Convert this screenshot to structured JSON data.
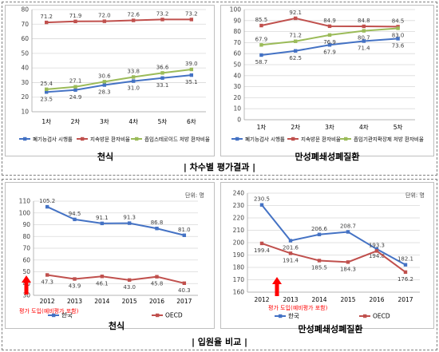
{
  "chart_data": [
    {
      "type": "line",
      "categories": [
        "1차",
        "2차",
        "3차",
        "4차",
        "5차",
        "6차"
      ],
      "ylim": [
        10,
        80
      ],
      "yticks": [
        10,
        20,
        30,
        40,
        50,
        60,
        70,
        80
      ],
      "grid": true,
      "legend_position": "bottom",
      "series": [
        {
          "name": "폐기능검사 시행률",
          "color": "#4472c4",
          "values": [
            23.5,
            24.9,
            28.3,
            31.0,
            33.1,
            35.1
          ]
        },
        {
          "name": "지속방문 환자비율",
          "color": "#c0504d",
          "values": [
            71.2,
            71.9,
            72.0,
            72.6,
            73.2,
            73.2
          ]
        },
        {
          "name": "흡입스테로이드 처방 환자비율",
          "color": "#9bbb59",
          "values": [
            25.4,
            27.1,
            30.6,
            33.8,
            36.6,
            39.0
          ]
        }
      ],
      "caption": "천식"
    },
    {
      "type": "line",
      "categories": [
        "1차",
        "2차",
        "3차",
        "4차",
        "5차"
      ],
      "ylim": [
        0,
        100
      ],
      "yticks": [
        0,
        10,
        20,
        30,
        40,
        50,
        60,
        70,
        80,
        90,
        100
      ],
      "grid": true,
      "legend_position": "bottom",
      "series": [
        {
          "name": "폐기능검사 시행률",
          "color": "#4472c4",
          "values": [
            58.7,
            62.5,
            67.9,
            71.4,
            73.6
          ]
        },
        {
          "name": "지속방문 환자비율",
          "color": "#c0504d",
          "values": [
            85.5,
            92.1,
            84.9,
            84.8,
            84.5
          ]
        },
        {
          "name": "흡입기관지확장제 처방 환자비율",
          "color": "#9bbb59",
          "values": [
            67.9,
            71.2,
            76.9,
            80.7,
            83.0
          ]
        }
      ],
      "caption": "만성폐쇄성폐질환"
    },
    {
      "type": "line",
      "categories": [
        "2012",
        "2013",
        "2014",
        "2015",
        "2016",
        "2017"
      ],
      "ylim": [
        30,
        110
      ],
      "yticks": [
        30,
        40,
        50,
        60,
        70,
        80,
        90,
        100,
        110
      ],
      "grid": true,
      "legend_position": "bottom",
      "unit_label": "단위: 명",
      "intro_label": "평가 도입(예비평가 포함)",
      "series": [
        {
          "name": "한국",
          "color": "#4472c4",
          "values": [
            105.2,
            94.5,
            91.1,
            91.3,
            86.8,
            81.0
          ]
        },
        {
          "name": "OECD",
          "color": "#c0504d",
          "values": [
            47.3,
            43.9,
            46.1,
            43.0,
            45.8,
            40.3
          ]
        }
      ],
      "caption": "천식"
    },
    {
      "type": "line",
      "categories": [
        "2012",
        "2013",
        "2014",
        "2015",
        "2016",
        "2017"
      ],
      "ylim": [
        160,
        240
      ],
      "yticks": [
        160,
        170,
        180,
        190,
        200,
        210,
        220,
        230,
        240
      ],
      "grid": true,
      "legend_position": "bottom",
      "unit_label": "단위: 명",
      "intro_label": "평가 도입(예비평가 포함)",
      "series": [
        {
          "name": "한국",
          "color": "#4472c4",
          "values": [
            230.5,
            201.6,
            206.6,
            208.7,
            194.8,
            182.1
          ]
        },
        {
          "name": "OECD",
          "color": "#c0504d",
          "values": [
            199.4,
            191.4,
            185.5,
            184.3,
            193.3,
            176.2
          ]
        }
      ],
      "caption": "만성폐쇄성폐질환"
    }
  ],
  "section_titles": {
    "top": "| 차수별 평가결과 |",
    "bottom": "| 입원율 비교 |"
  }
}
